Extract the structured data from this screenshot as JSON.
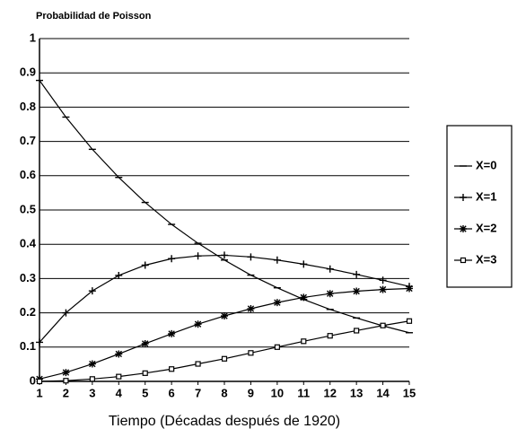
{
  "chart_data": {
    "type": "line",
    "title": "Probabilidad de Poisson",
    "x_label": "Tiempo (Décadas después de 1920)",
    "x": [
      1,
      2,
      3,
      4,
      5,
      6,
      7,
      8,
      9,
      10,
      11,
      12,
      13,
      14,
      15
    ],
    "xlim": [
      1,
      15
    ],
    "xticks": [
      1,
      2,
      3,
      4,
      5,
      6,
      7,
      8,
      9,
      10,
      11,
      12,
      13,
      14,
      15
    ],
    "ylim": [
      0,
      1
    ],
    "yticks": [
      0,
      0.1,
      0.2,
      0.3,
      0.4,
      0.5,
      0.6,
      0.7,
      0.8,
      0.9,
      1
    ],
    "grid": true,
    "legend": "right",
    "series": [
      {
        "name": "X=0",
        "color": "#000000",
        "marker": "dash",
        "values": [
          0.878,
          0.771,
          0.677,
          0.595,
          0.522,
          0.458,
          0.403,
          0.354,
          0.31,
          0.273,
          0.239,
          0.21,
          0.185,
          0.162,
          0.142
        ]
      },
      {
        "name": "X=1",
        "color": "#000000",
        "marker": "plus",
        "values": [
          0.114,
          0.2,
          0.264,
          0.309,
          0.339,
          0.358,
          0.366,
          0.368,
          0.363,
          0.354,
          0.342,
          0.328,
          0.312,
          0.295,
          0.277
        ]
      },
      {
        "name": "X=2",
        "color": "#000000",
        "marker": "star",
        "values": [
          0.007,
          0.026,
          0.051,
          0.08,
          0.11,
          0.139,
          0.167,
          0.191,
          0.212,
          0.23,
          0.245,
          0.256,
          0.263,
          0.268,
          0.271
        ]
      },
      {
        "name": "X=3",
        "color": "#000000",
        "marker": "square",
        "values": [
          0.0,
          0.002,
          0.007,
          0.014,
          0.024,
          0.036,
          0.051,
          0.066,
          0.083,
          0.1,
          0.117,
          0.133,
          0.148,
          0.163,
          0.176
        ]
      }
    ]
  }
}
